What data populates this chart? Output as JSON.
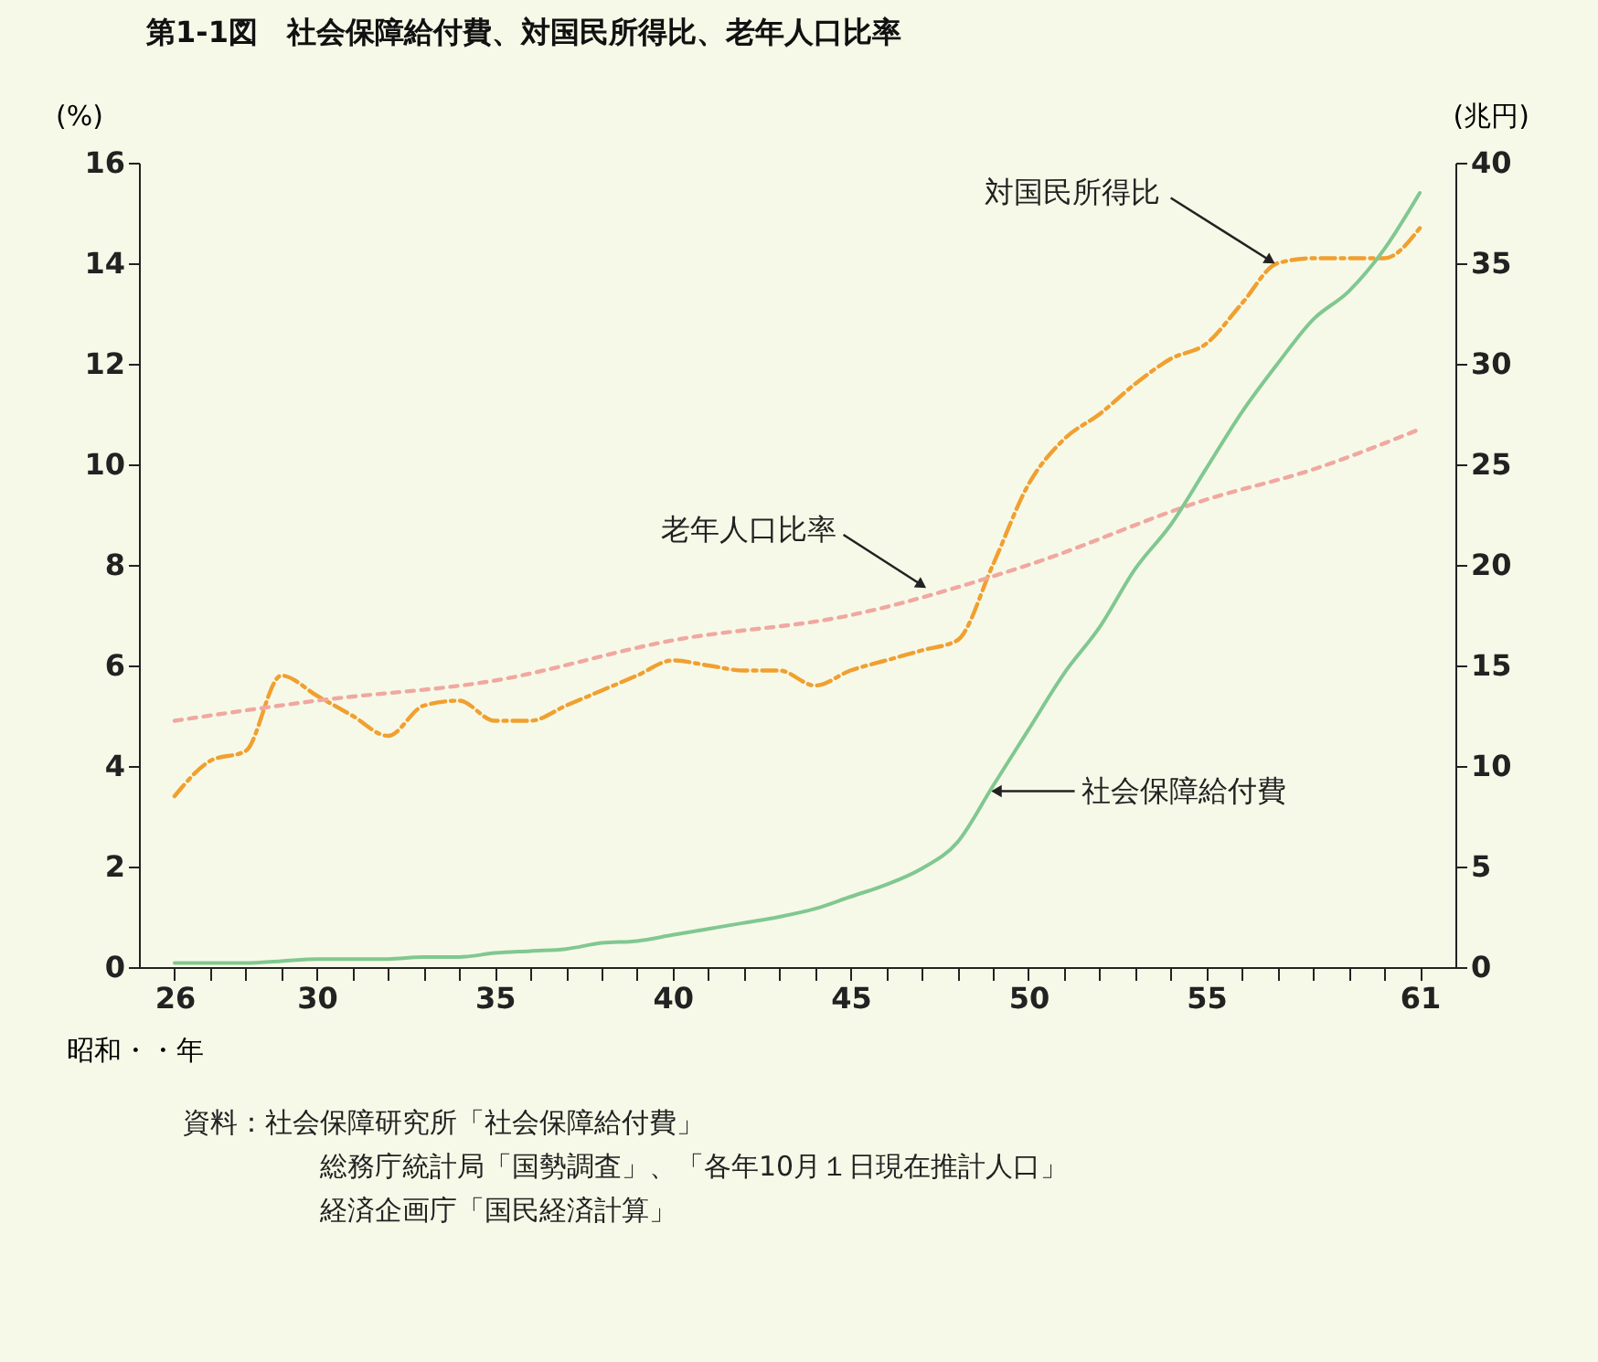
{
  "chart_data": {
    "type": "line",
    "title": "第1-1図　社会保障給付費、対国民所得比、老年人口比率",
    "xlabel": "昭和・・年",
    "ylabel": "(%)",
    "y2label": "(兆円)",
    "x": [
      26,
      27,
      28,
      29,
      30,
      31,
      32,
      33,
      34,
      35,
      36,
      37,
      38,
      39,
      40,
      41,
      42,
      43,
      44,
      45,
      46,
      47,
      48,
      49,
      50,
      51,
      52,
      53,
      54,
      55,
      56,
      57,
      58,
      59,
      60,
      61
    ],
    "xlim": [
      25,
      62
    ],
    "xticks": [
      26,
      {
        "value": 27,
        "label": null
      },
      {
        "value": 28,
        "label": null
      },
      {
        "value": 29,
        "label": null
      },
      30,
      {
        "value": 31,
        "label": null
      },
      {
        "value": 32,
        "label": null
      },
      {
        "value": 33,
        "label": null
      },
      {
        "value": 34,
        "label": null
      },
      35,
      {
        "value": 36,
        "label": null
      },
      {
        "value": 37,
        "label": null
      },
      {
        "value": 38,
        "label": null
      },
      {
        "value": 39,
        "label": null
      },
      40,
      {
        "value": 41,
        "label": null
      },
      {
        "value": 42,
        "label": null
      },
      {
        "value": 43,
        "label": null
      },
      {
        "value": 44,
        "label": null
      },
      45,
      {
        "value": 46,
        "label": null
      },
      {
        "value": 47,
        "label": null
      },
      {
        "value": 48,
        "label": null
      },
      {
        "value": 49,
        "label": null
      },
      50,
      {
        "value": 51,
        "label": null
      },
      {
        "value": 52,
        "label": null
      },
      {
        "value": 53,
        "label": null
      },
      {
        "value": 54,
        "label": null
      },
      55,
      {
        "value": 56,
        "label": null
      },
      {
        "value": 57,
        "label": null
      },
      {
        "value": 58,
        "label": null
      },
      {
        "value": 59,
        "label": null
      },
      {
        "value": 60,
        "label": null
      },
      61
    ],
    "ylim": [
      0,
      16
    ],
    "yticks": [
      0,
      2,
      4,
      6,
      8,
      10,
      12,
      14,
      16
    ],
    "y2lim": [
      0,
      40
    ],
    "y2ticks": [
      0,
      5,
      10,
      15,
      20,
      25,
      30,
      35,
      40
    ],
    "series": [
      {
        "name": "対国民所得比",
        "color": "#f0a030",
        "line_style": "dashed",
        "values": [
          3.4,
          4.1,
          4.3,
          5.8,
          5.4,
          5.0,
          4.6,
          5.2,
          5.3,
          4.9,
          4.9,
          5.2,
          5.5,
          5.8,
          6.1,
          6.0,
          5.9,
          5.9,
          5.6,
          5.9,
          6.1,
          6.3,
          6.5,
          8.0,
          9.6,
          10.5,
          11.0,
          11.6,
          12.1,
          12.4,
          13.2,
          14.0,
          14.1,
          14.1,
          14.1,
          14.7
        ]
      },
      {
        "name": "老年人口比率",
        "color": "#f0a8a0",
        "line_style": "dotted",
        "x": [
          26,
          30,
          35,
          40,
          45,
          50,
          55,
          58,
          61
        ],
        "values": [
          4.9,
          5.3,
          5.7,
          6.5,
          7.0,
          8.0,
          9.3,
          9.9,
          10.7
        ]
      },
      {
        "name": "社会保障給付費",
        "color": "#80c890",
        "line_style": "solid",
        "axis": "y2",
        "values": [
          0.2,
          0.2,
          0.2,
          0.3,
          0.4,
          0.4,
          0.4,
          0.5,
          0.5,
          0.7,
          0.8,
          0.9,
          1.2,
          1.3,
          1.6,
          1.9,
          2.2,
          2.5,
          2.9,
          3.5,
          4.1,
          4.9,
          6.2,
          9.0,
          11.8,
          14.6,
          16.9,
          19.8,
          22.0,
          24.8,
          27.6,
          30.0,
          32.2,
          33.6,
          35.7,
          38.5
        ]
      }
    ],
    "annotations": [
      "資料：社会保障研究所「社会保障給付費」",
      "総務庁統計局「国勢調査」、「各年10月１日現在推計人口」",
      "経済企画庁「国民経済計算」"
    ]
  }
}
